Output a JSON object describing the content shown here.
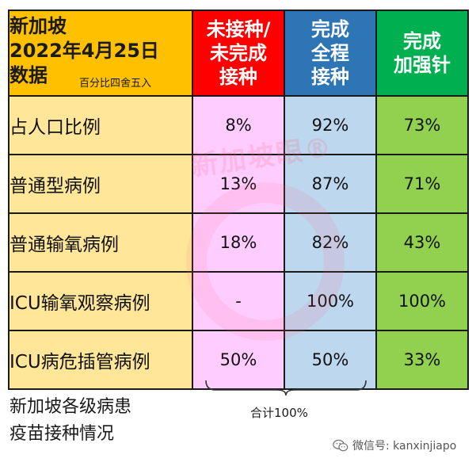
{
  "header": {
    "title_line1": "新加坡",
    "title_line2": "2022年4月25日",
    "title_line3": "数据",
    "rounding_note": "百分比四舍五入",
    "unvax_line1": "未接种/",
    "unvax_line2": "未完成",
    "unvax_line3": "接种",
    "full_line1": "完成",
    "full_line2": "全程",
    "full_line3": "接种",
    "boost_line1": "完成",
    "boost_line2": "加强针"
  },
  "rows": [
    {
      "label": "占人口比例",
      "unvax": "8%",
      "full": "92%",
      "boost": "73%"
    },
    {
      "label": "普通型病例",
      "unvax": "13%",
      "full": "87%",
      "boost": "71%"
    },
    {
      "label": "普通输氧病例",
      "unvax": "18%",
      "full": "82%",
      "boost": "43%"
    },
    {
      "label": "ICU输氧观察病例",
      "unvax": "-",
      "full": "100%",
      "boost": "100%"
    },
    {
      "label": "ICU病危插管病例",
      "unvax": "50%",
      "full": "50%",
      "boost": "33%"
    }
  ],
  "caption_line1": "新加坡各级病患",
  "caption_line2": "疫苗接种情况",
  "sum_label": "合计100%",
  "watermark": "新加坡眼®",
  "wechat_label": "微信号: kanxinjiapo",
  "icons": {
    "wechat": "wechat-icon"
  },
  "colors": {
    "header_main": "#ffc000",
    "unvax_header": "#ff0000",
    "full_header": "#2e75b6",
    "boost_header": "#00b050",
    "label_cell": "#ffe699",
    "unvax_cell": "#ffccff",
    "full_cell": "#bdd7ee",
    "boost_cell": "#92d050"
  }
}
